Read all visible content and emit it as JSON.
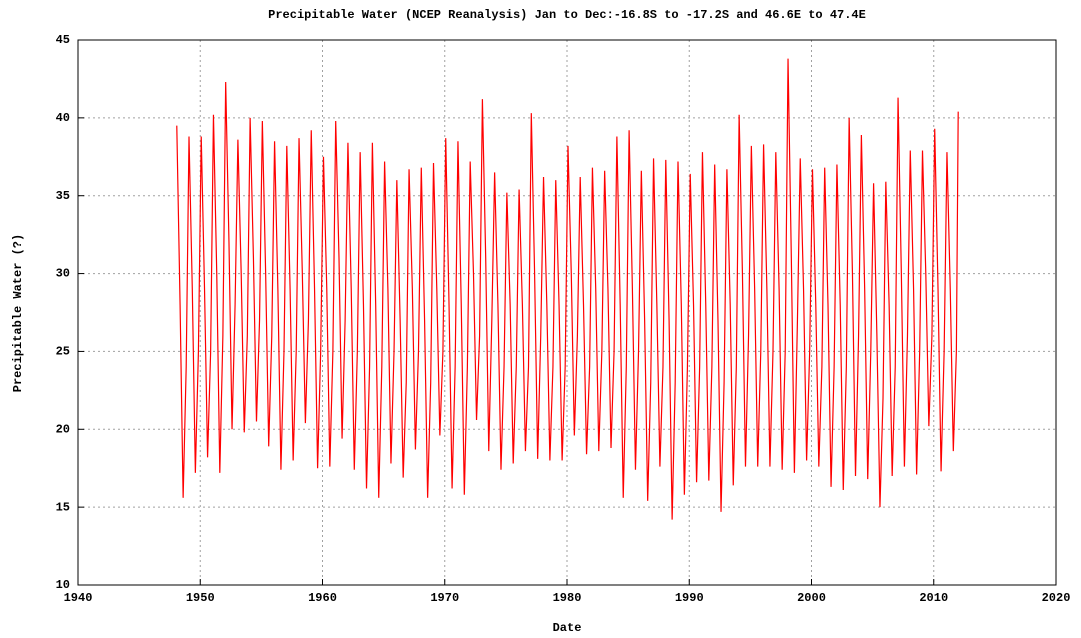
{
  "chart_data": {
    "type": "line",
    "title": "Precipitable Water (NCEP Reanalysis) Jan to Dec:-16.8S to -17.2S and 46.6E to 47.4E",
    "x_label": "Date",
    "y_label": "Precipitable Water (?)",
    "xlim": [
      1940,
      2020
    ],
    "xticks": [
      1940,
      1950,
      1960,
      1970,
      1980,
      1990,
      2000,
      2010,
      2020
    ],
    "ylim": [
      10,
      45
    ],
    "yticks": [
      10,
      15,
      20,
      25,
      30,
      35,
      40,
      45
    ],
    "grid": true,
    "x": [
      1948.08,
      1948.35,
      1948.6,
      1948.85,
      1949.08,
      1949.35,
      1949.6,
      1949.85,
      1950.08,
      1950.35,
      1950.6,
      1950.85,
      1951.08,
      1951.35,
      1951.6,
      1951.85,
      1952.08,
      1952.35,
      1952.6,
      1952.85,
      1953.08,
      1953.35,
      1953.6,
      1953.85,
      1954.08,
      1954.35,
      1954.6,
      1954.85,
      1955.08,
      1955.35,
      1955.6,
      1955.85,
      1956.08,
      1956.35,
      1956.6,
      1956.85,
      1957.08,
      1957.35,
      1957.6,
      1957.85,
      1958.08,
      1958.35,
      1958.6,
      1958.85,
      1959.08,
      1959.35,
      1959.6,
      1959.85,
      1960.08,
      1960.35,
      1960.6,
      1960.85,
      1961.08,
      1961.35,
      1961.6,
      1961.85,
      1962.08,
      1962.35,
      1962.6,
      1962.85,
      1963.08,
      1963.35,
      1963.6,
      1963.85,
      1964.08,
      1964.35,
      1964.6,
      1964.85,
      1965.08,
      1965.35,
      1965.6,
      1965.85,
      1966.08,
      1966.35,
      1966.6,
      1966.85,
      1967.08,
      1967.35,
      1967.6,
      1967.85,
      1968.08,
      1968.35,
      1968.6,
      1968.85,
      1969.08,
      1969.35,
      1969.6,
      1969.85,
      1970.08,
      1970.35,
      1970.6,
      1970.85,
      1971.08,
      1971.35,
      1971.6,
      1971.85,
      1972.08,
      1972.35,
      1972.6,
      1972.85,
      1973.08,
      1973.35,
      1973.6,
      1973.85,
      1974.08,
      1974.35,
      1974.6,
      1974.85,
      1975.08,
      1975.35,
      1975.6,
      1975.85,
      1976.08,
      1976.35,
      1976.6,
      1976.85,
      1977.08,
      1977.35,
      1977.6,
      1977.85,
      1978.08,
      1978.35,
      1978.6,
      1978.85,
      1979.08,
      1979.35,
      1979.6,
      1979.85,
      1980.08,
      1980.35,
      1980.6,
      1980.85,
      1981.08,
      1981.35,
      1981.6,
      1981.85,
      1982.08,
      1982.35,
      1982.6,
      1982.85,
      1983.08,
      1983.35,
      1983.6,
      1983.85,
      1984.08,
      1984.35,
      1984.6,
      1984.85,
      1985.08,
      1985.35,
      1985.6,
      1985.85,
      1986.08,
      1986.35,
      1986.6,
      1986.85,
      1987.08,
      1987.35,
      1987.6,
      1987.85,
      1988.08,
      1988.35,
      1988.6,
      1988.85,
      1989.08,
      1989.35,
      1989.6,
      1989.85,
      1990.08,
      1990.35,
      1990.6,
      1990.85,
      1991.08,
      1991.35,
      1991.6,
      1991.85,
      1992.08,
      1992.35,
      1992.6,
      1992.85,
      1993.08,
      1993.35,
      1993.6,
      1993.85,
      1994.08,
      1994.35,
      1994.6,
      1994.85,
      1995.08,
      1995.35,
      1995.6,
      1995.85,
      1996.08,
      1996.35,
      1996.6,
      1996.85,
      1997.08,
      1997.35,
      1997.6,
      1997.85,
      1998.08,
      1998.35,
      1998.6,
      1998.85,
      1999.08,
      1999.35,
      1999.6,
      1999.85,
      2000.08,
      2000.35,
      2000.6,
      2000.85,
      2001.08,
      2001.35,
      2001.6,
      2001.85,
      2002.08,
      2002.35,
      2002.6,
      2002.85,
      2003.08,
      2003.35,
      2003.6,
      2003.85,
      2004.08,
      2004.35,
      2004.6,
      2004.85,
      2005.08,
      2005.35,
      2005.6,
      2005.85,
      2006.08,
      2006.35,
      2006.6,
      2006.85,
      2007.08,
      2007.35,
      2007.6,
      2007.85,
      2008.08,
      2008.35,
      2008.6,
      2008.85,
      2009.08,
      2009.35,
      2009.6,
      2009.85,
      2010.08,
      2010.35,
      2010.6,
      2010.85,
      2011.08,
      2011.35,
      2011.6,
      2011.85,
      2012.0
    ],
    "series": [
      {
        "color": "#ff0000",
        "values": [
          39.5,
          28,
          15.6,
          24,
          38.8,
          29,
          17.2,
          25,
          38.8,
          29,
          18.2,
          25,
          40.2,
          30,
          17.2,
          26,
          42.3,
          32,
          20.0,
          28,
          38.6,
          30,
          19.8,
          26,
          40.0,
          31,
          20.5,
          27,
          39.8,
          30,
          18.9,
          26,
          38.5,
          29,
          17.4,
          25,
          38.2,
          29,
          18.0,
          25,
          38.7,
          30,
          20.4,
          27,
          39.2,
          29,
          17.5,
          25,
          37.5,
          29,
          17.6,
          25,
          39.8,
          31,
          19.4,
          27,
          38.4,
          29,
          17.4,
          25,
          37.8,
          28,
          16.2,
          24,
          38.4,
          28,
          15.6,
          24,
          37.2,
          29,
          17.8,
          25,
          36.0,
          27,
          16.9,
          23,
          36.7,
          29,
          18.7,
          25,
          36.8,
          27,
          15.6,
          23,
          37.1,
          29,
          19.6,
          25,
          38.7,
          28,
          16.2,
          24,
          38.5,
          28,
          15.8,
          24,
          37.2,
          30,
          20.6,
          26,
          41.2,
          31,
          18.6,
          27,
          36.5,
          28,
          17.4,
          24,
          35.2,
          28,
          17.8,
          24,
          35.4,
          28,
          18.6,
          24,
          40.3,
          30,
          18.1,
          26,
          36.2,
          28,
          18.0,
          24,
          36.0,
          28,
          18.0,
          24,
          38.2,
          30,
          19.6,
          26,
          36.2,
          28,
          18.4,
          24,
          36.8,
          29,
          18.6,
          25,
          36.6,
          29,
          18.8,
          25,
          38.8,
          28,
          15.6,
          24,
          39.2,
          29,
          17.4,
          25,
          36.6,
          27,
          15.4,
          23,
          37.4,
          28,
          17.6,
          24,
          37.3,
          27,
          14.2,
          23,
          37.2,
          28,
          15.8,
          24,
          36.4,
          28,
          16.6,
          24,
          37.8,
          28,
          16.7,
          24,
          37.0,
          27,
          14.7,
          23,
          36.7,
          28,
          16.4,
          24,
          40.2,
          30,
          17.6,
          26,
          38.2,
          29,
          17.6,
          25,
          38.3,
          29,
          17.6,
          25,
          37.8,
          29,
          17.4,
          25,
          43.8,
          31,
          17.2,
          27,
          37.4,
          29,
          18.0,
          25,
          36.7,
          28,
          17.6,
          24,
          36.8,
          28,
          16.3,
          24,
          37.0,
          28,
          16.1,
          24,
          40.0,
          30,
          17.0,
          26,
          38.9,
          29,
          16.8,
          25,
          35.8,
          26,
          15.0,
          22,
          35.9,
          28,
          17.0,
          24,
          41.3,
          30,
          17.6,
          26,
          37.9,
          29,
          17.1,
          25,
          37.9,
          30,
          20.2,
          26,
          39.3,
          29,
          17.3,
          25,
          37.8,
          29,
          18.6,
          25,
          40.4
        ]
      }
    ]
  }
}
